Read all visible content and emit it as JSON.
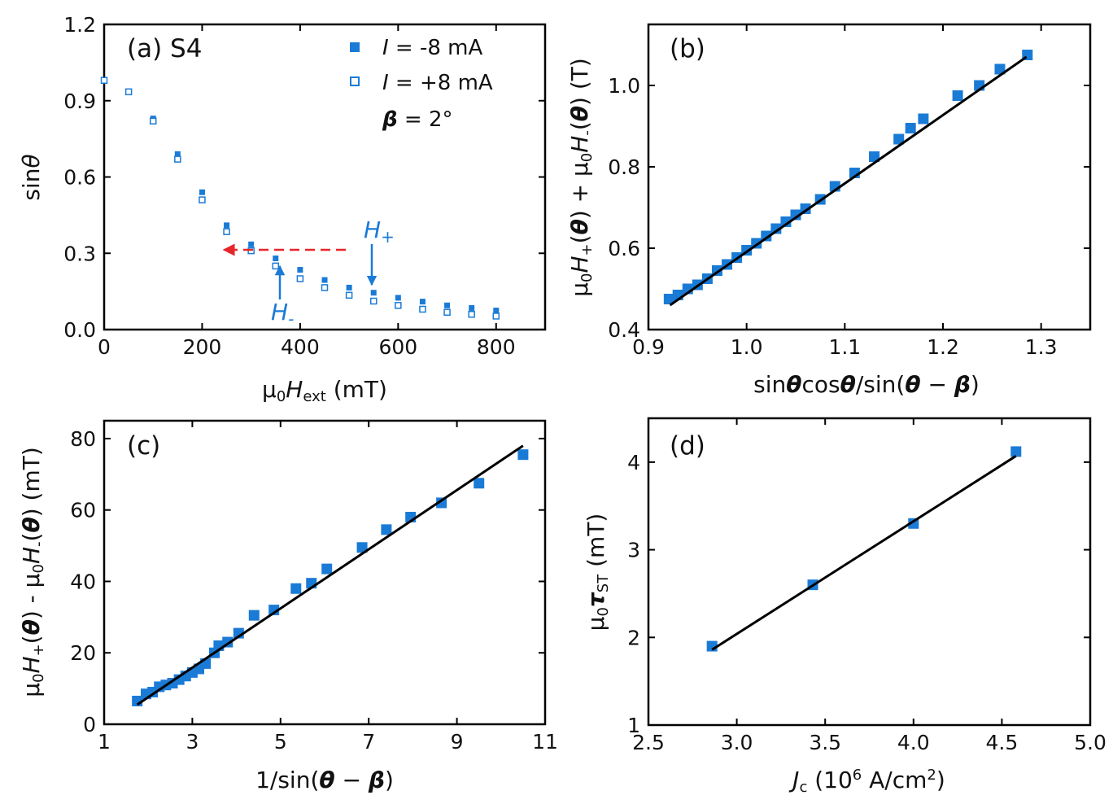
{
  "colors": {
    "marker": "#1a7bd6",
    "fit": "#000000",
    "arrow_red": "#e8252a",
    "arrow_blue": "#1a7bd6"
  },
  "chart_data": [
    {
      "id": "a",
      "type": "scatter",
      "panel_label": "(a) S4",
      "xlabel": "μ0Hext (mT)",
      "ylabel": "sinθ",
      "xlim": [
        0,
        900
      ],
      "ylim": [
        0.0,
        1.2
      ],
      "xticks": [
        "0",
        "200",
        "400",
        "600",
        "800"
      ],
      "yticks": [
        "0.0",
        "0.3",
        "0.6",
        "0.9",
        "1.2"
      ],
      "legend": {
        "placement": "top-right",
        "entries": [
          "I = -8 mA",
          "I = +8 mA"
        ],
        "note": "β = 2°"
      },
      "annotations": [
        "H+",
        "H-"
      ],
      "series": [
        {
          "name": "I = -8 mA",
          "marker": "filled-square",
          "x": [
            0,
            50,
            100,
            150,
            200,
            250,
            300,
            350,
            400,
            450,
            500,
            550,
            600,
            650,
            700,
            750,
            800
          ],
          "y": [
            0.98,
            0.935,
            0.83,
            0.69,
            0.54,
            0.41,
            0.335,
            0.28,
            0.235,
            0.195,
            0.165,
            0.145,
            0.125,
            0.11,
            0.095,
            0.085,
            0.075
          ]
        },
        {
          "name": "I = +8 mA",
          "marker": "open-square",
          "x": [
            0,
            50,
            100,
            150,
            200,
            250,
            300,
            350,
            400,
            450,
            500,
            550,
            600,
            650,
            700,
            750,
            800
          ],
          "y": [
            0.98,
            0.935,
            0.82,
            0.67,
            0.51,
            0.385,
            0.31,
            0.25,
            0.2,
            0.165,
            0.135,
            0.112,
            0.095,
            0.08,
            0.068,
            0.06,
            0.053
          ]
        }
      ]
    },
    {
      "id": "b",
      "type": "scatter",
      "panel_label": "(b)",
      "xlabel": "sinθcosθ/sin(θ−β)",
      "ylabel": "μ0H+(θ) + μ0H-(θ) (T)",
      "xlim": [
        0.9,
        1.35
      ],
      "ylim": [
        0.4,
        1.15
      ],
      "xticks": [
        "0.9",
        "1.0",
        "1.1",
        "1.2",
        "1.3"
      ],
      "yticks": [
        "0.4",
        "0.6",
        "0.8",
        "1.0"
      ],
      "fit": {
        "x": [
          0.922,
          1.285
        ],
        "y": [
          0.46,
          1.07
        ]
      },
      "series": [
        {
          "name": "data",
          "marker": "filled-square",
          "x": [
            0.921,
            0.93,
            0.94,
            0.95,
            0.96,
            0.97,
            0.98,
            0.99,
            1.0,
            1.01,
            1.02,
            1.03,
            1.04,
            1.05,
            1.06,
            1.075,
            1.09,
            1.11,
            1.13,
            1.155,
            1.167,
            1.18,
            1.215,
            1.237,
            1.258,
            1.286
          ],
          "y": [
            0.475,
            0.485,
            0.5,
            0.51,
            0.525,
            0.545,
            0.56,
            0.577,
            0.595,
            0.612,
            0.63,
            0.648,
            0.665,
            0.682,
            0.697,
            0.72,
            0.752,
            0.785,
            0.825,
            0.868,
            0.895,
            0.918,
            0.975,
            1.0,
            1.04,
            1.075
          ]
        }
      ]
    },
    {
      "id": "c",
      "type": "scatter",
      "panel_label": "(c)",
      "xlabel": "1/sin(θ−β)",
      "ylabel": "μ0H+(θ) - μ0H-(θ) (mT)",
      "xlim": [
        1,
        11
      ],
      "ylim": [
        0,
        85
      ],
      "xticks": [
        "1",
        "3",
        "5",
        "7",
        "9",
        "11"
      ],
      "yticks": [
        "0",
        "20",
        "40",
        "60",
        "80"
      ],
      "fit": {
        "x": [
          1.75,
          10.5
        ],
        "y": [
          5.5,
          78
        ]
      },
      "series": [
        {
          "name": "data",
          "marker": "filled-square",
          "x": [
            1.75,
            1.95,
            2.1,
            2.25,
            2.4,
            2.55,
            2.7,
            2.85,
            3.0,
            3.15,
            3.3,
            3.5,
            3.6,
            3.8,
            4.05,
            4.4,
            4.85,
            5.35,
            5.7,
            6.05,
            6.85,
            7.4,
            7.95,
            8.65,
            9.5,
            10.5
          ],
          "y": [
            6.5,
            8.5,
            9.0,
            10.5,
            11.0,
            11.5,
            12.5,
            13.5,
            14.5,
            15.5,
            17.0,
            20.0,
            22.0,
            23.0,
            25.5,
            30.5,
            32.0,
            38.0,
            39.5,
            43.5,
            49.5,
            54.5,
            58.0,
            62.0,
            67.5,
            75.5
          ]
        }
      ]
    },
    {
      "id": "d",
      "type": "scatter",
      "panel_label": "(d)",
      "xlabel": "Jc (10^6 A/cm^2)",
      "ylabel": "μ0τST (mT)",
      "xlim": [
        2.5,
        5.0
      ],
      "ylim": [
        1,
        4.5
      ],
      "xticks": [
        "2.5",
        "3.0",
        "3.5",
        "4.0",
        "4.5",
        "5.0"
      ],
      "yticks": [
        "1",
        "2",
        "3",
        "4"
      ],
      "fit": {
        "x": [
          2.86,
          4.58
        ],
        "y": [
          1.86,
          4.07
        ]
      },
      "series": [
        {
          "name": "data",
          "marker": "filled-square",
          "x": [
            2.86,
            3.43,
            4.0,
            4.58
          ],
          "y": [
            1.9,
            2.6,
            3.3,
            4.12
          ]
        }
      ]
    }
  ]
}
